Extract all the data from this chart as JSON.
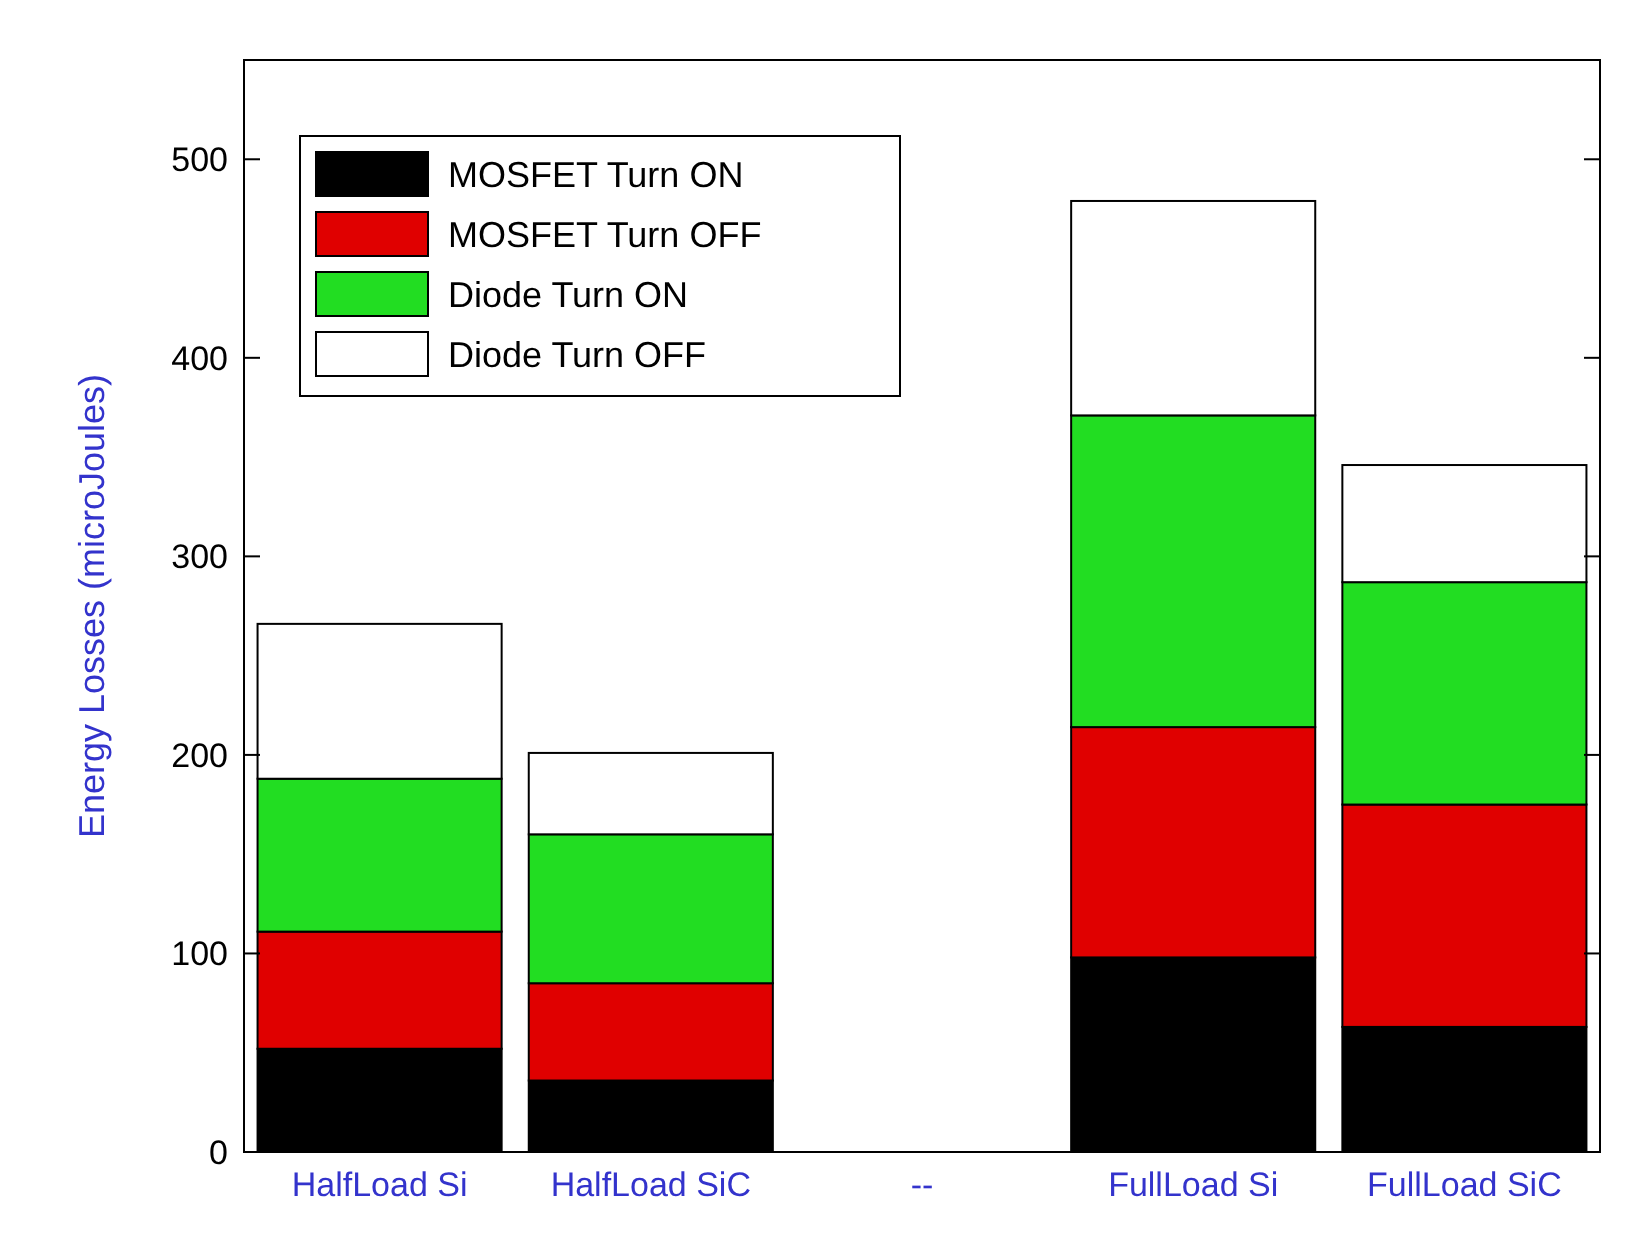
{
  "chart_data": {
    "type": "bar",
    "stacked": true,
    "ylabel": "Energy Losses (microJoules)",
    "categories": [
      "HalfLoad Si",
      "HalfLoad SiC",
      "--",
      "FullLoad Si",
      "FullLoad SiC"
    ],
    "series": [
      {
        "name": "MOSFET Turn ON",
        "color": "#000000",
        "values": [
          52,
          36,
          null,
          98,
          63
        ]
      },
      {
        "name": "MOSFET Turn OFF",
        "color": "#e00000",
        "values": [
          59,
          49,
          null,
          116,
          112
        ]
      },
      {
        "name": "Diode Turn ON",
        "color": "#22dd22",
        "values": [
          77,
          75,
          null,
          157,
          112
        ]
      },
      {
        "name": "Diode Turn OFF",
        "color": "#ffffff",
        "values": [
          78,
          41,
          null,
          108,
          59
        ]
      }
    ],
    "ylim": [
      0,
      550
    ],
    "yticks": [
      0,
      100,
      200,
      300,
      400,
      500
    ],
    "grid": false,
    "legend": "top left"
  }
}
